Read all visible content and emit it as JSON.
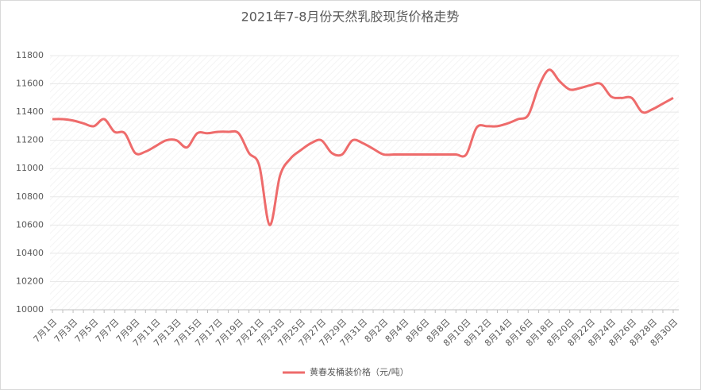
{
  "chart_data": {
    "type": "line",
    "title": "2021年7-8月份天然乳胶现货价格走势",
    "categories": [
      "7月1日",
      null,
      "7月3日",
      null,
      "7月5日",
      null,
      "7月7日",
      null,
      "7月9日",
      null,
      "7月11日",
      null,
      "7月13日",
      null,
      "7月15日",
      null,
      "7月17日",
      null,
      "7月19日",
      null,
      "7月21日",
      null,
      "7月23日",
      null,
      "7月25日",
      null,
      "7月27日",
      null,
      "7月29日",
      null,
      "7月31日",
      null,
      "8月2日",
      null,
      "8月4日",
      null,
      "8月6日",
      null,
      "8月8日",
      null,
      "8月10日",
      null,
      "8月12日",
      null,
      "8月14日",
      null,
      "8月16日",
      null,
      "8月18日",
      null,
      "8月20日",
      null,
      "8月22日",
      null,
      "8月24日",
      null,
      "8月26日",
      null,
      "8月28日",
      null,
      "8月30日"
    ],
    "series": [
      {
        "name": "黄春发桶装价格（元/吨）",
        "color": "#ee6b6b",
        "values": [
          11350,
          11350,
          11340,
          11320,
          11300,
          11350,
          11260,
          11250,
          11110,
          11120,
          11160,
          11200,
          11200,
          11150,
          11250,
          11250,
          11260,
          11260,
          11250,
          11110,
          11020,
          10600,
          10950,
          11070,
          11130,
          11180,
          11200,
          11110,
          11100,
          11200,
          11180,
          11140,
          11100,
          11100,
          11100,
          11100,
          11100,
          11100,
          11100,
          11100,
          11100,
          11290,
          11300,
          11300,
          11320,
          11350,
          11380,
          11580,
          11700,
          11620,
          11560,
          11570,
          11590,
          11600,
          11510,
          11500,
          11500,
          11400,
          11420,
          11460,
          11500
        ]
      }
    ],
    "ylim": [
      10000,
      11800
    ],
    "yticks": [
      10000,
      10200,
      10400,
      10600,
      10800,
      11000,
      11200,
      11400,
      11600,
      11800
    ],
    "grid": true,
    "legend": "bottom"
  }
}
